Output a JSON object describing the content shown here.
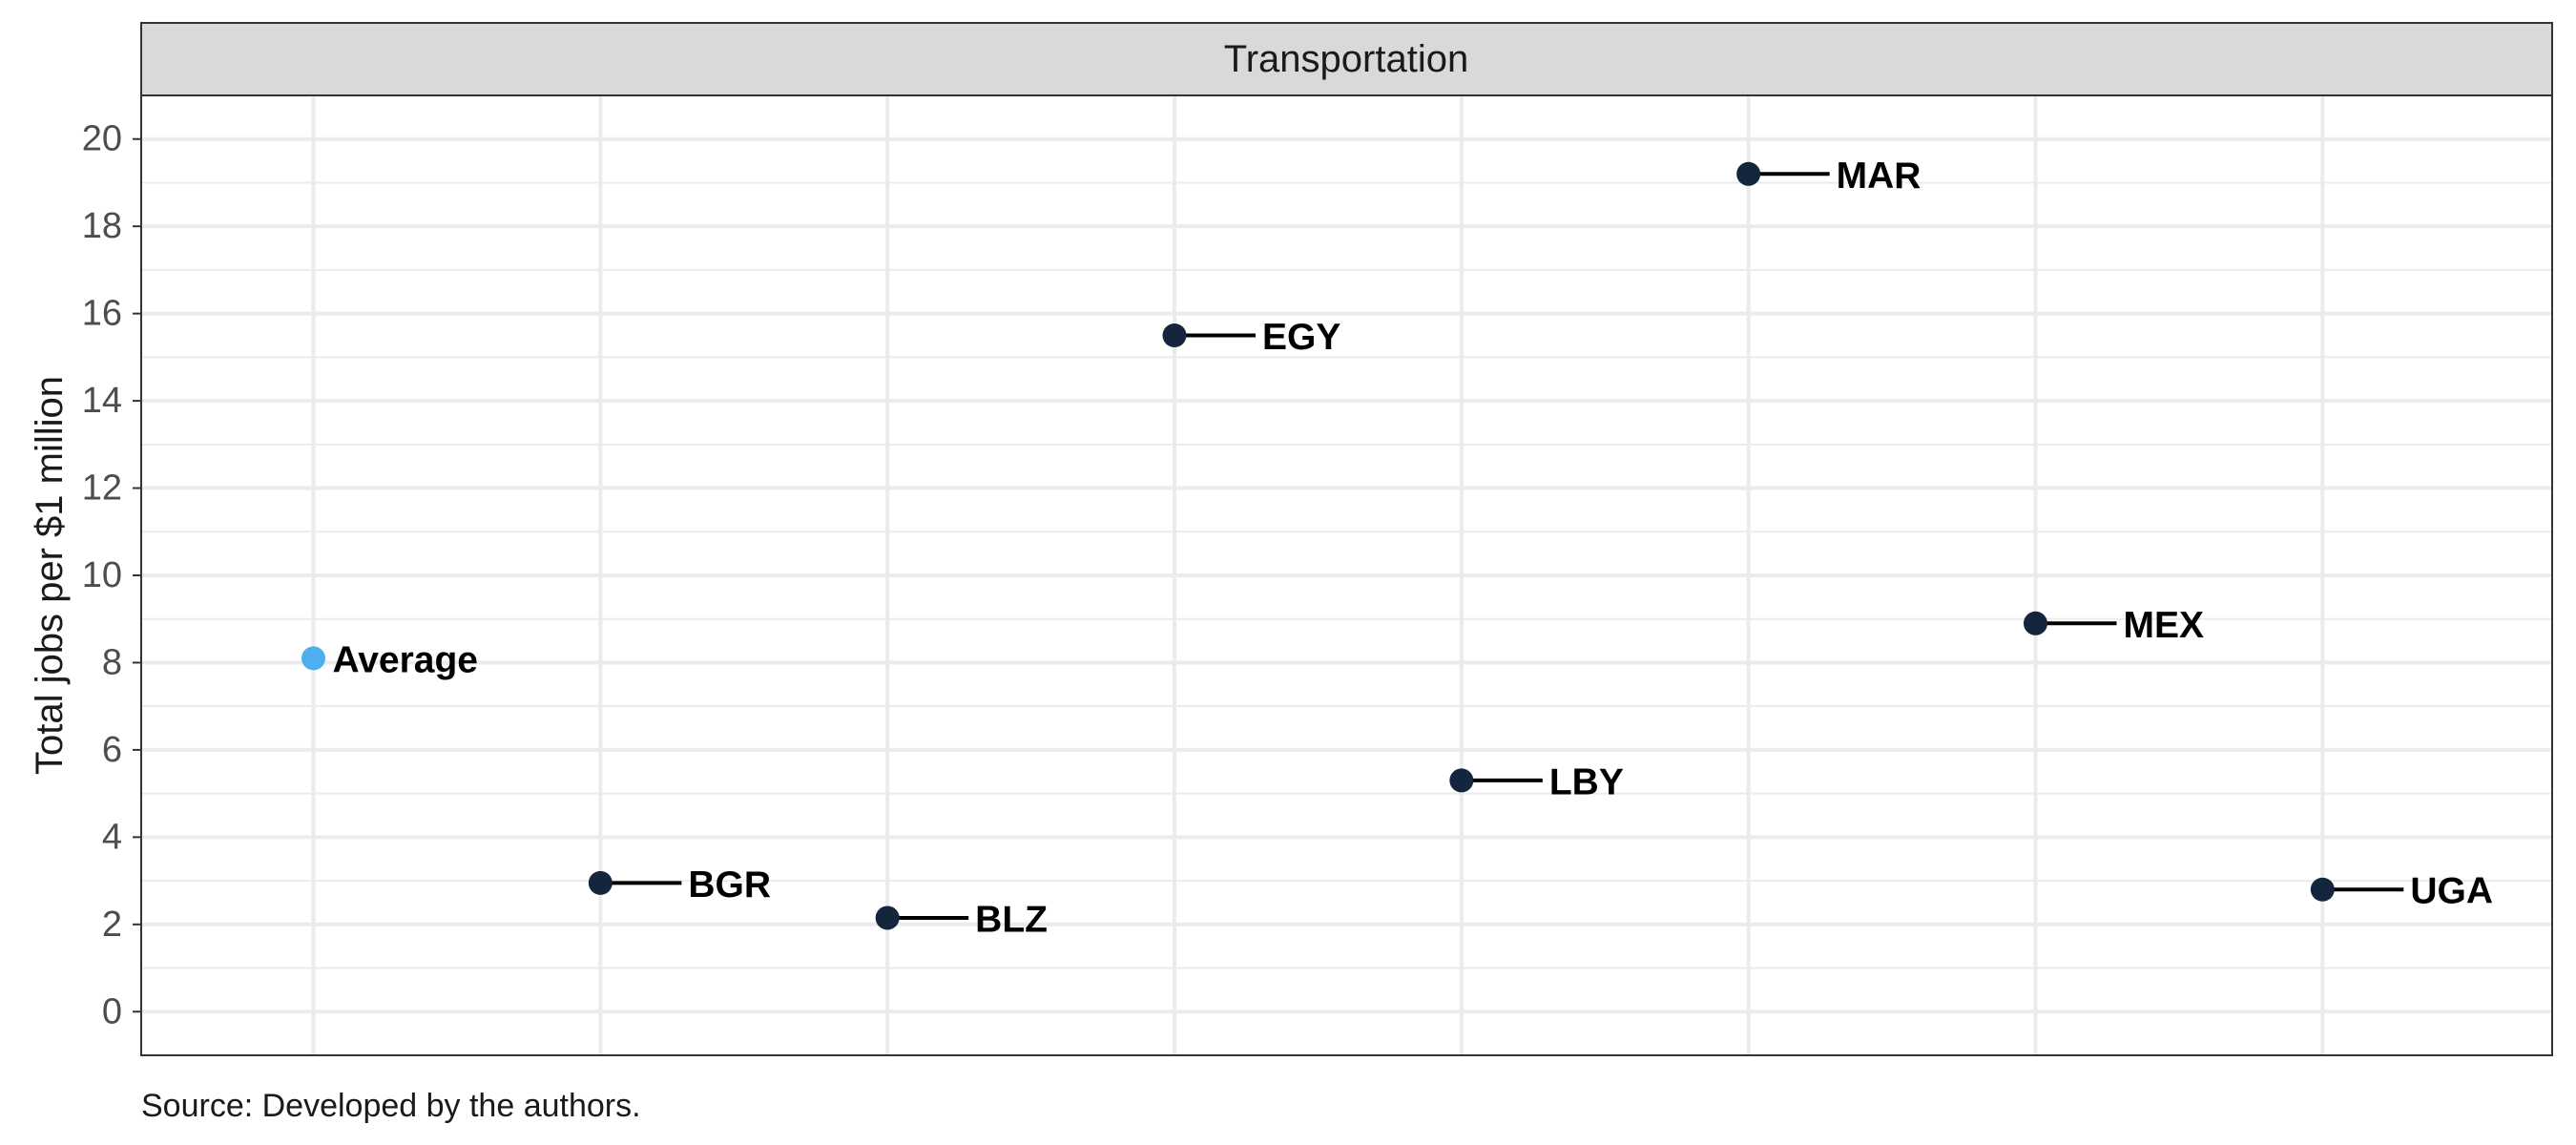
{
  "chart_data": {
    "type": "scatter",
    "facet_title": "Transportation",
    "xlabel": "",
    "ylabel": "Total jobs per $1 million",
    "ylim": [
      -1,
      21
    ],
    "yticks": [
      0,
      2,
      4,
      6,
      8,
      10,
      12,
      14,
      16,
      18,
      20
    ],
    "ytick_labels": [
      "0",
      "2",
      "4",
      "6",
      "8",
      "10",
      "12",
      "14",
      "16",
      "18",
      "20"
    ],
    "categories": [
      "Average",
      "BGR",
      "BLZ",
      "EGY",
      "LBY",
      "MAR",
      "MEX",
      "UGA"
    ],
    "points": [
      {
        "label": "Average",
        "value": 8.1,
        "highlight": true
      },
      {
        "label": "BGR",
        "value": 2.95,
        "highlight": false
      },
      {
        "label": "BLZ",
        "value": 2.15,
        "highlight": false
      },
      {
        "label": "EGY",
        "value": 15.5,
        "highlight": false
      },
      {
        "label": "LBY",
        "value": 5.3,
        "highlight": false
      },
      {
        "label": "MAR",
        "value": 19.2,
        "highlight": false
      },
      {
        "label": "MEX",
        "value": 8.9,
        "highlight": false
      },
      {
        "label": "UGA",
        "value": 2.8,
        "highlight": false
      }
    ],
    "grid": true,
    "legend": "none",
    "caption": "Source: Developed by the authors."
  },
  "colors": {
    "point": "#13263d",
    "highlight_point": "#4eaeee",
    "leader_line": "#000000",
    "gridline": "#ebebeb",
    "strip_fill": "#d9d9d9",
    "panel_border": "#333333"
  }
}
